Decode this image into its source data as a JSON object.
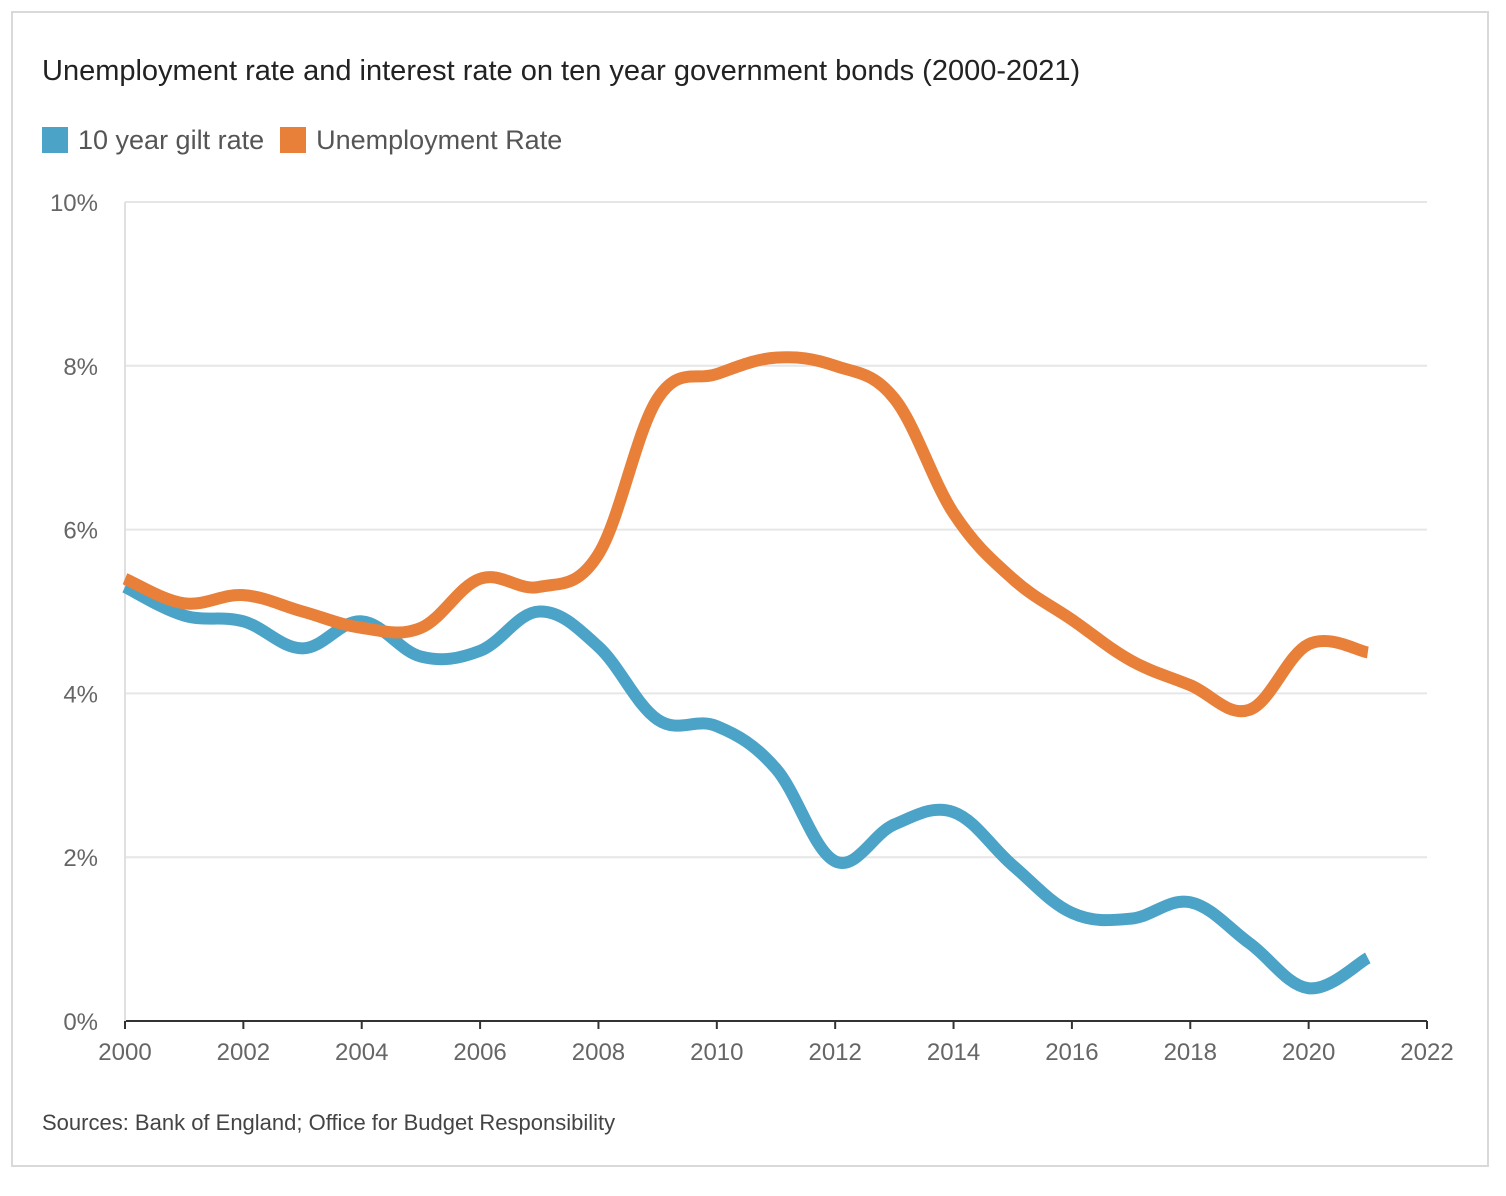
{
  "chart_data": {
    "type": "line",
    "title": "Unemployment rate and interest rate on ten year government bonds (2000-2021)",
    "xlabel": "",
    "ylabel": "",
    "xlim": [
      2000,
      2022
    ],
    "ylim": [
      0,
      10
    ],
    "x_ticks": [
      2000,
      2002,
      2004,
      2006,
      2008,
      2010,
      2012,
      2014,
      2016,
      2018,
      2020,
      2022
    ],
    "x_tick_labels": [
      "2000",
      "2002",
      "2004",
      "2006",
      "2008",
      "2010",
      "2012",
      "2014",
      "2016",
      "2018",
      "2020",
      "2022"
    ],
    "y_ticks": [
      0,
      2,
      4,
      6,
      8,
      10
    ],
    "y_tick_labels": [
      "0%",
      "2%",
      "4%",
      "6%",
      "8%",
      "10%"
    ],
    "grid": true,
    "legend_position": "top-left",
    "x": [
      2000,
      2001,
      2002,
      2003,
      2004,
      2005,
      2006,
      2007,
      2008,
      2009,
      2010,
      2011,
      2012,
      2013,
      2014,
      2015,
      2016,
      2017,
      2018,
      2019,
      2020,
      2021
    ],
    "series": [
      {
        "name": "10 year gilt rate",
        "color": "#4ba3c7",
        "values": [
          5.3,
          4.95,
          4.88,
          4.55,
          4.88,
          4.45,
          4.52,
          5.0,
          4.57,
          3.68,
          3.6,
          3.08,
          1.95,
          2.4,
          2.55,
          1.9,
          1.32,
          1.25,
          1.45,
          0.95,
          0.4,
          0.77
        ]
      },
      {
        "name": "Unemployment Rate",
        "color": "#e8803a",
        "values": [
          5.4,
          5.1,
          5.2,
          5.0,
          4.8,
          4.8,
          5.4,
          5.3,
          5.7,
          7.6,
          7.9,
          8.1,
          8.0,
          7.6,
          6.2,
          5.4,
          4.9,
          4.4,
          4.1,
          3.8,
          4.6,
          4.5
        ]
      }
    ]
  },
  "source_text": "Sources: Bank of England; Office for Budget Responsibility"
}
